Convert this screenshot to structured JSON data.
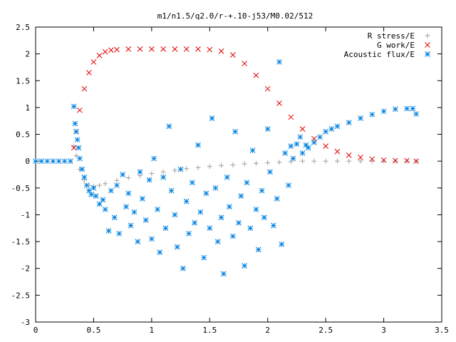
{
  "chart_data": {
    "type": "scatter",
    "title": "m1/n1.5/q2.0/r-+.10-j53/M0.02/512",
    "xlabel": "",
    "ylabel": "",
    "xlim": [
      0,
      3.5
    ],
    "ylim": [
      -3,
      2.5
    ],
    "x_ticks": [
      "0",
      "0.5",
      "1",
      "1.5",
      "2",
      "2.5",
      "3",
      "3.5"
    ],
    "y_ticks": [
      "2.5",
      "2",
      "1.5",
      "1",
      "0.5",
      "0",
      "-0.5",
      "-1",
      "-1.5",
      "-2",
      "-2.5",
      "-3"
    ],
    "grid": false,
    "legend_position": "top-right",
    "series": [
      {
        "name": "R stress/E",
        "marker": "plus",
        "color": "#a0a0a0",
        "x": [
          0.33,
          0.35,
          0.38,
          0.42,
          0.46,
          0.5,
          0.55,
          0.6,
          0.7,
          0.8,
          0.9,
          1.0,
          1.1,
          1.2,
          1.3,
          1.4,
          1.5,
          1.6,
          1.7,
          1.8,
          1.9,
          2.0,
          2.1,
          2.2,
          2.3,
          2.4,
          2.5,
          2.6,
          2.7,
          2.8,
          2.9,
          3.0,
          3.1,
          3.2,
          3.28
        ],
        "y": [
          0.28,
          0.1,
          -0.15,
          -0.35,
          -0.45,
          -0.47,
          -0.45,
          -0.42,
          -0.36,
          -0.31,
          -0.27,
          -0.23,
          -0.2,
          -0.17,
          -0.14,
          -0.12,
          -0.1,
          -0.08,
          -0.07,
          -0.05,
          -0.04,
          -0.03,
          -0.02,
          -0.01,
          0.0,
          0.0,
          0.0,
          0.0,
          0.0,
          0.0,
          0.0,
          0.0,
          0.0,
          0.0,
          0.0
        ]
      },
      {
        "name": "G work/E",
        "marker": "cross",
        "color": "#e00000",
        "x": [
          0.33,
          0.35,
          0.38,
          0.42,
          0.46,
          0.5,
          0.55,
          0.6,
          0.65,
          0.7,
          0.8,
          0.9,
          1.0,
          1.1,
          1.2,
          1.3,
          1.4,
          1.5,
          1.6,
          1.7,
          1.8,
          1.9,
          2.0,
          2.1,
          2.2,
          2.3,
          2.4,
          2.5,
          2.6,
          2.7,
          2.8,
          2.9,
          3.0,
          3.1,
          3.2,
          3.28
        ],
        "y": [
          0.25,
          0.55,
          0.95,
          1.35,
          1.65,
          1.85,
          1.97,
          2.04,
          2.07,
          2.08,
          2.09,
          2.09,
          2.09,
          2.09,
          2.09,
          2.09,
          2.09,
          2.08,
          2.05,
          1.98,
          1.82,
          1.6,
          1.35,
          1.08,
          0.82,
          0.6,
          0.42,
          0.28,
          0.18,
          0.11,
          0.07,
          0.04,
          0.02,
          0.01,
          0.01,
          0.0
        ]
      },
      {
        "name": "Acoustic flux/E",
        "marker": "star",
        "color": "#0080e0",
        "x": [
          0.0,
          0.05,
          0.1,
          0.15,
          0.2,
          0.25,
          0.3,
          0.33,
          0.34,
          0.35,
          0.36,
          0.37,
          0.38,
          0.4,
          0.42,
          0.44,
          0.46,
          0.48,
          0.5,
          0.52,
          0.55,
          0.58,
          0.6,
          0.63,
          0.65,
          0.68,
          0.7,
          0.72,
          0.75,
          0.78,
          0.8,
          0.82,
          0.85,
          0.88,
          0.9,
          0.92,
          0.95,
          0.98,
          1.0,
          1.02,
          1.05,
          1.07,
          1.1,
          1.12,
          1.15,
          1.17,
          1.2,
          1.22,
          1.25,
          1.27,
          1.3,
          1.32,
          1.35,
          1.37,
          1.4,
          1.42,
          1.45,
          1.47,
          1.5,
          1.52,
          1.55,
          1.57,
          1.6,
          1.62,
          1.65,
          1.67,
          1.7,
          1.72,
          1.75,
          1.77,
          1.8,
          1.82,
          1.85,
          1.87,
          1.9,
          1.92,
          1.95,
          1.97,
          2.0,
          2.02,
          2.05,
          2.08,
          2.1,
          2.12,
          2.15,
          2.18,
          2.2,
          2.22,
          2.25,
          2.28,
          2.3,
          2.33,
          2.35,
          2.4,
          2.45,
          2.5,
          2.55,
          2.6,
          2.7,
          2.8,
          2.9,
          3.0,
          3.1,
          3.2,
          3.25,
          3.28
        ],
        "y": [
          0.0,
          0.0,
          0.0,
          0.0,
          0.0,
          0.0,
          0.0,
          1.02,
          0.7,
          0.55,
          0.4,
          0.25,
          0.05,
          -0.15,
          -0.3,
          -0.45,
          -0.55,
          -0.62,
          -0.5,
          -0.65,
          -0.8,
          -0.72,
          -0.9,
          -1.3,
          -0.55,
          -1.05,
          -0.45,
          -1.35,
          -0.25,
          -0.85,
          -0.6,
          -1.2,
          -0.95,
          -1.5,
          -0.2,
          -0.7,
          -1.1,
          -0.35,
          -1.45,
          0.05,
          -0.9,
          -1.7,
          -0.3,
          -1.25,
          0.65,
          -0.55,
          -1.0,
          -1.6,
          -0.15,
          -2.0,
          -0.75,
          -1.35,
          -0.4,
          -1.15,
          0.3,
          -0.95,
          -1.8,
          -0.6,
          -1.25,
          0.8,
          -0.5,
          -1.5,
          -1.05,
          -2.1,
          -0.3,
          -0.85,
          -1.4,
          0.55,
          -1.15,
          -0.65,
          -1.95,
          -0.4,
          -1.25,
          0.2,
          -0.9,
          -1.65,
          -0.55,
          -1.05,
          0.6,
          -0.2,
          -1.2,
          -0.7,
          1.85,
          -1.55,
          0.15,
          -0.45,
          0.28,
          0.05,
          0.32,
          0.45,
          0.15,
          0.3,
          0.25,
          0.35,
          0.45,
          0.55,
          0.6,
          0.65,
          0.72,
          0.8,
          0.87,
          0.93,
          0.97,
          0.98,
          0.98,
          0.88
        ]
      }
    ]
  }
}
